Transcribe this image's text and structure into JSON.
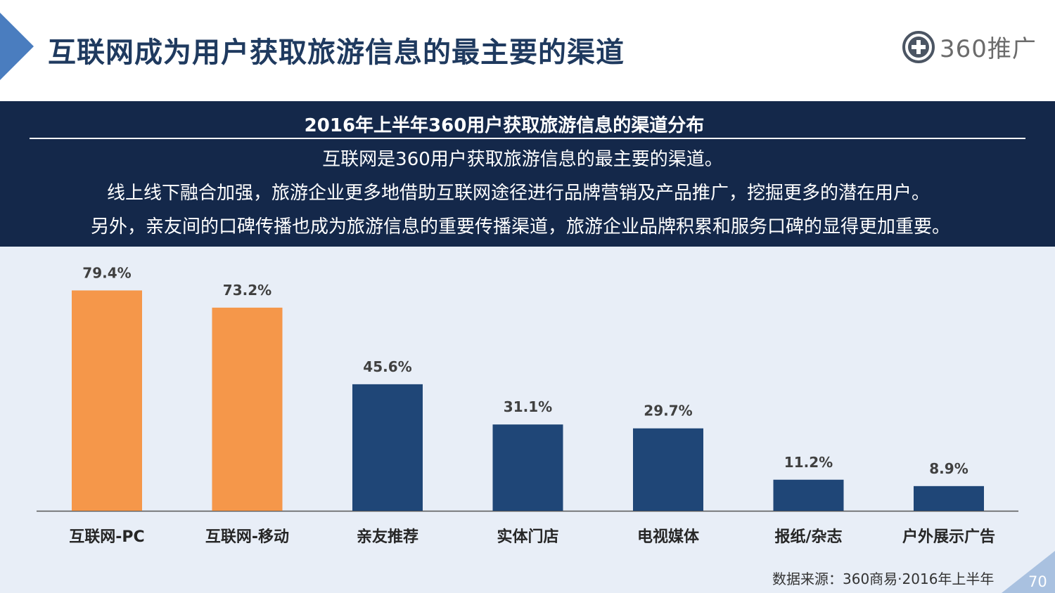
{
  "header": {
    "title": "互联网成为用户获取旅游信息的最主要的渠道",
    "logo_text": "360推广"
  },
  "banner": {
    "title": "2016年上半年360用户获取旅游信息的渠道分布",
    "lines": [
      "互联网是360用户获取旅游信息的最主要的渠道。",
      "线上线下融合加强，旅游企业更多地借助互联网途径进行品牌营销及产品推广，挖掘更多的潜在用户。",
      "另外，亲友间的口碑传播也成为旅游信息的重要传播渠道，旅游企业品牌积累和服务口碑的显得更加重要。"
    ]
  },
  "chart_data": {
    "type": "bar",
    "title": "2016年上半年360用户获取旅游信息的渠道分布",
    "categories": [
      "互联网-PC",
      "互联网-移动",
      "亲友推荐",
      "实体门店",
      "电视媒体",
      "报纸/杂志",
      "户外展示广告"
    ],
    "values": [
      79.4,
      73.2,
      45.6,
      31.1,
      29.7,
      11.2,
      8.9
    ],
    "data_labels": [
      "79.4%",
      "73.2%",
      "45.6%",
      "31.1%",
      "29.7%",
      "11.2%",
      "8.9%"
    ],
    "unit": "%",
    "ylim": [
      0,
      100
    ],
    "grid": false,
    "xlabel": "",
    "ylabel": "",
    "colors": {
      "highlight": "#f5974a",
      "default": "#1f4677"
    },
    "highlight_indices": [
      0,
      1
    ]
  },
  "footer": {
    "source": "数据来源：360商易·2016年上半年",
    "page_number": "70"
  },
  "colors": {
    "banner_bg": "#14284a",
    "chart_bg": "#e8eef7",
    "title": "#1f3a5f",
    "accent_blue": "#4a7dbf"
  }
}
